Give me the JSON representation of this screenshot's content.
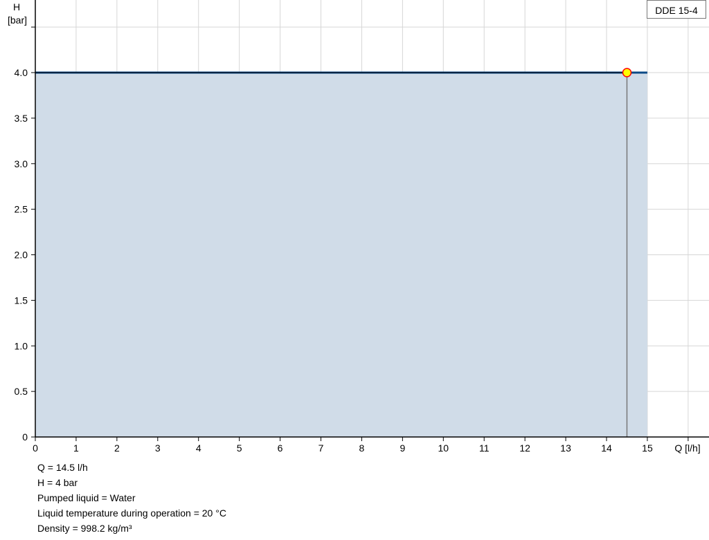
{
  "chart_data": {
    "type": "area",
    "xlabel": "Q [l/h]",
    "ylabel_line1": "H",
    "ylabel_line2": "[bar]",
    "xlim": [
      0,
      16
    ],
    "ylim": [
      0,
      4.5
    ],
    "x_ticks": [
      0,
      1,
      2,
      3,
      4,
      5,
      6,
      7,
      8,
      9,
      10,
      11,
      12,
      13,
      14,
      15
    ],
    "y_ticks": [
      "0",
      "0.5",
      "1.0",
      "1.5",
      "2.0",
      "2.5",
      "3.0",
      "3.5",
      "4.0"
    ],
    "grid": true,
    "series": [
      {
        "name": "DDE 15-4",
        "x": [
          0,
          15
        ],
        "y": [
          4.0,
          4.0
        ],
        "color": "#0b4a86",
        "fill": "#d0dce8"
      }
    ],
    "operating_point": {
      "x": 14.5,
      "y": 4.0,
      "fill": "#ffff00",
      "stroke": "#ff0000"
    },
    "legend_placement": "top-right"
  },
  "info": [
    "Q = 14.5 l/h",
    "H = 4 bar",
    "Pumped liquid = Water",
    "Liquid temperature during operation = 20 °C",
    "Density = 998.2 kg/m³"
  ]
}
